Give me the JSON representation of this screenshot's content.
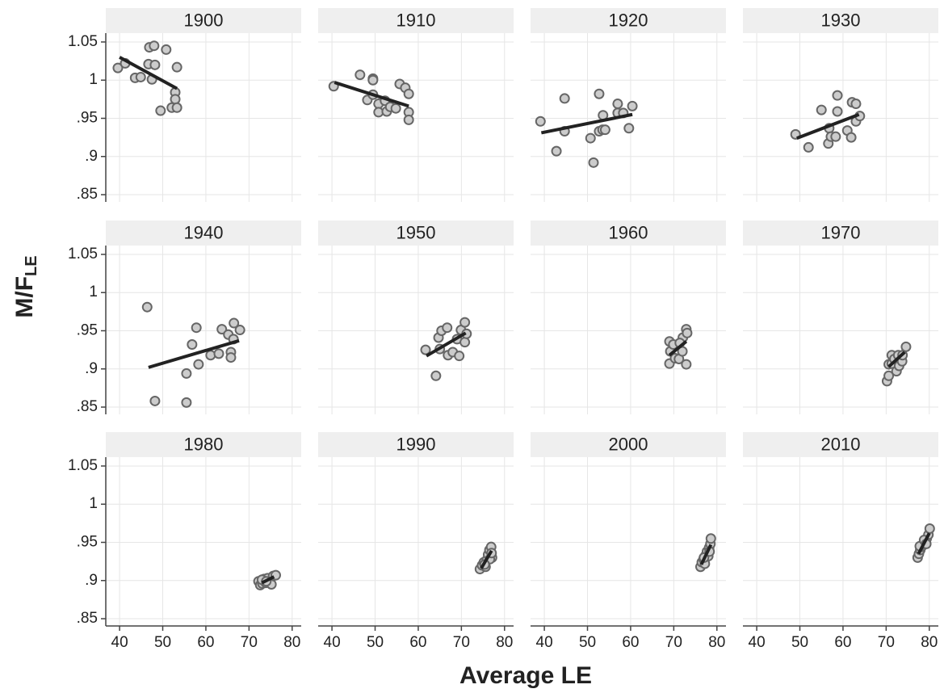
{
  "axes": {
    "x_label": "Average LE",
    "y_label": "M/F",
    "y_label_sub": "LE",
    "xlim": [
      36.8,
      82.1
    ],
    "xticks": [
      40,
      50,
      60,
      70,
      80
    ],
    "ylim": [
      0.8405,
      1.0616
    ],
    "yticks": [
      {
        "value": 0.85,
        "label": ".85"
      },
      {
        "value": 0.9,
        "label": ".9"
      },
      {
        "value": 0.95,
        "label": ".95"
      },
      1,
      1.05
    ],
    "grid": true,
    "point_color": "#cccccc",
    "point_edge": "#666666",
    "line_color": "#222222"
  },
  "chart_data": [
    {
      "type": "scatter",
      "title": "1900",
      "x": [
        39.6,
        41.3,
        43.6,
        44.9,
        46.9,
        48.0,
        46.7,
        48.2,
        47.5,
        49.5,
        50.8,
        53.3,
        52.9,
        52.9,
        52.1,
        53.3
      ],
      "y": [
        1.016,
        1.022,
        1.003,
        1.004,
        1.043,
        1.045,
        1.021,
        1.02,
        1.001,
        0.96,
        1.04,
        1.017,
        0.984,
        0.975,
        0.964,
        0.964
      ],
      "trend": {
        "x": [
          40,
          53.3
        ],
        "y": [
          1.03,
          0.989
        ]
      }
    },
    {
      "type": "scatter",
      "title": "1910",
      "x": [
        40.4,
        46.5,
        49.5,
        49.5,
        48.2,
        49.5,
        50.8,
        50.8,
        52.3,
        52.7,
        53.5,
        54.8,
        55.7,
        57.0,
        57.8,
        57.8,
        57.8
      ],
      "y": [
        0.992,
        1.007,
        1.002,
        1.0,
        0.974,
        0.981,
        0.969,
        0.958,
        0.973,
        0.959,
        0.965,
        0.963,
        0.995,
        0.99,
        0.982,
        0.958,
        0.948
      ],
      "trend": {
        "x": [
          40.6,
          57.8
        ],
        "y": [
          0.997,
          0.966
        ]
      }
    },
    {
      "type": "scatter",
      "title": "1920",
      "x": [
        39.1,
        42.8,
        44.7,
        44.7,
        50.7,
        51.4,
        52.7,
        52.7,
        53.5,
        54.1,
        53.6,
        57.0,
        57.0,
        58.3,
        59.6,
        60.4
      ],
      "y": [
        0.946,
        0.907,
        0.976,
        0.933,
        0.924,
        0.892,
        0.982,
        0.933,
        0.935,
        0.935,
        0.954,
        0.969,
        0.957,
        0.957,
        0.937,
        0.966
      ],
      "trend": {
        "x": [
          39.3,
          60.4
        ],
        "y": [
          0.931,
          0.955
        ]
      }
    },
    {
      "type": "scatter",
      "title": "1930",
      "x": [
        49.0,
        52.0,
        55.0,
        56.8,
        56.6,
        57.2,
        58.3,
        58.7,
        58.7,
        61.0,
        61.9,
        62.1,
        63.0,
        63.0,
        63.9
      ],
      "y": [
        0.929,
        0.912,
        0.961,
        0.937,
        0.917,
        0.926,
        0.926,
        0.98,
        0.959,
        0.934,
        0.925,
        0.971,
        0.969,
        0.946,
        0.953
      ],
      "trend": {
        "x": [
          49.3,
          63.7
        ],
        "y": [
          0.924,
          0.955
        ]
      }
    },
    {
      "type": "scatter",
      "title": "1940",
      "x": [
        46.4,
        48.2,
        55.5,
        55.5,
        56.8,
        57.8,
        58.3,
        61.1,
        63.0,
        63.7,
        65.2,
        65.8,
        65.8,
        66.4,
        66.5,
        67.9
      ],
      "y": [
        0.981,
        0.858,
        0.894,
        0.856,
        0.932,
        0.954,
        0.906,
        0.918,
        0.92,
        0.952,
        0.945,
        0.922,
        0.915,
        0.939,
        0.96,
        0.951
      ],
      "trend": {
        "x": [
          46.7,
          67.7
        ],
        "y": [
          0.902,
          0.937
        ]
      }
    },
    {
      "type": "scatter",
      "title": "1950",
      "x": [
        61.7,
        64.1,
        64.7,
        65.4,
        66.7,
        65.0,
        66.9,
        68.0,
        69.0,
        69.9,
        70.8,
        70.8,
        71.2,
        69.5
      ],
      "y": [
        0.925,
        0.891,
        0.941,
        0.95,
        0.954,
        0.926,
        0.918,
        0.922,
        0.939,
        0.951,
        0.961,
        0.935,
        0.946,
        0.917
      ],
      "trend": {
        "x": [
          61.9,
          71.0
        ],
        "y": [
          0.917,
          0.947
        ]
      }
    },
    {
      "type": "scatter",
      "title": "1960",
      "x": [
        69.0,
        69.0,
        69.2,
        69.9,
        70.3,
        71.2,
        72.0,
        72.1,
        72.9,
        73.1,
        72.9,
        71.4
      ],
      "y": [
        0.936,
        0.907,
        0.923,
        0.932,
        0.914,
        0.913,
        0.923,
        0.941,
        0.952,
        0.947,
        0.906,
        0.934
      ],
      "trend": {
        "x": [
          69.0,
          72.9
        ],
        "y": [
          0.918,
          0.936
        ]
      }
    },
    {
      "type": "scatter",
      "title": "1970",
      "x": [
        70.2,
        70.6,
        70.6,
        71.3,
        71.3,
        71.9,
        72.4,
        72.8,
        73.0,
        73.7,
        73.8,
        74.6
      ],
      "y": [
        0.884,
        0.891,
        0.906,
        0.918,
        0.907,
        0.913,
        0.897,
        0.918,
        0.904,
        0.91,
        0.918,
        0.929
      ],
      "trend": {
        "x": [
          70.6,
          74.3
        ],
        "y": [
          0.903,
          0.922
        ]
      }
    },
    {
      "type": "scatter",
      "title": "1980",
      "x": [
        72.2,
        72.6,
        73.1,
        73.5,
        73.9,
        74.3,
        74.8,
        75.2,
        75.6,
        76.2,
        73.0,
        74.0
      ],
      "y": [
        0.899,
        0.894,
        0.896,
        0.902,
        0.897,
        0.903,
        0.899,
        0.895,
        0.906,
        0.907,
        0.901,
        0.899
      ],
      "trend": {
        "x": [
          73.0,
          75.8
        ],
        "y": [
          0.897,
          0.905
        ]
      }
    },
    {
      "type": "scatter",
      "title": "1990",
      "x": [
        74.3,
        74.8,
        75.2,
        75.6,
        75.9,
        76.2,
        76.5,
        76.9,
        77.1,
        76.6,
        75.4,
        77.0
      ],
      "y": [
        0.915,
        0.92,
        0.924,
        0.918,
        0.927,
        0.934,
        0.94,
        0.944,
        0.93,
        0.928,
        0.921,
        0.936
      ],
      "trend": {
        "x": [
          74.6,
          77.0
        ],
        "y": [
          0.916,
          0.939
        ]
      }
    },
    {
      "type": "scatter",
      "title": "2000",
      "x": [
        76.2,
        76.5,
        76.9,
        77.2,
        77.4,
        77.7,
        78.0,
        78.2,
        78.5,
        78.6,
        77.0,
        78.3
      ],
      "y": [
        0.918,
        0.924,
        0.928,
        0.922,
        0.933,
        0.938,
        0.932,
        0.943,
        0.948,
        0.955,
        0.93,
        0.938
      ],
      "trend": {
        "x": [
          76.4,
          78.6
        ],
        "y": [
          0.921,
          0.947
        ]
      }
    },
    {
      "type": "scatter",
      "title": "2010",
      "x": [
        77.3,
        77.6,
        77.9,
        78.2,
        78.6,
        79.0,
        79.4,
        79.8,
        80.1,
        77.8,
        78.8,
        79.3
      ],
      "y": [
        0.93,
        0.935,
        0.94,
        0.944,
        0.948,
        0.951,
        0.955,
        0.96,
        0.968,
        0.945,
        0.953,
        0.948
      ],
      "trend": {
        "x": [
          77.5,
          80.0
        ],
        "y": [
          0.935,
          0.962
        ]
      }
    }
  ]
}
